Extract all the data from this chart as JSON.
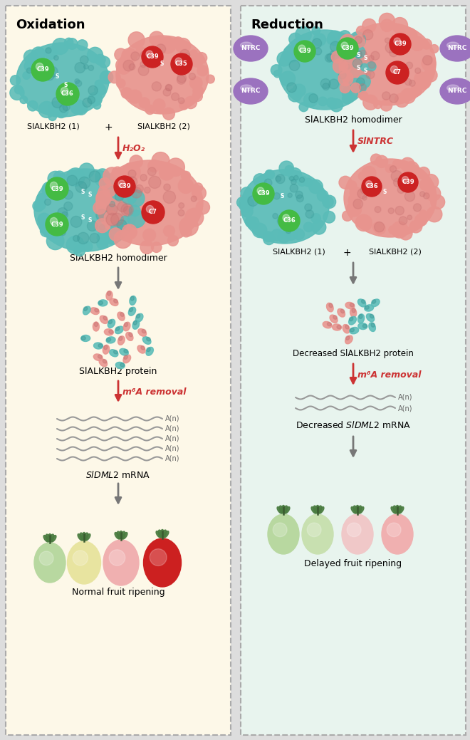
{
  "left_bg": "#fdf8e8",
  "right_bg": "#e8f4ee",
  "border_color": "#aaaaaa",
  "left_title": "Oxidation",
  "right_title": "Reduction",
  "teal_color": "#5abcb8",
  "teal_dark": "#3a9896",
  "pink_color": "#e8948e",
  "pink_dark": "#c87070",
  "red_sphere_color": "#cc2222",
  "green_sphere_color": "#44bb44",
  "purple_sphere_color": "#9b72bf",
  "purple_dark": "#7a52a0",
  "arrow_color": "#777777",
  "red_arrow_color": "#cc3333",
  "label_h2o2": "H₂O₂",
  "label_sintrc": "SlNTRC",
  "label_m6a": "m⁶A removal",
  "wave_color": "#999999",
  "an_color": "#666666",
  "text_color": "#222222",
  "fruit_colors_left": [
    "#b8d8a0",
    "#e8e4a0",
    "#f0b0b0",
    "#cc2020"
  ],
  "fruit_colors_right": [
    "#b8d8a0",
    "#c8e0b0",
    "#f0c8c8",
    "#f0b0b0"
  ],
  "tomato_highlight": "#ffffff"
}
